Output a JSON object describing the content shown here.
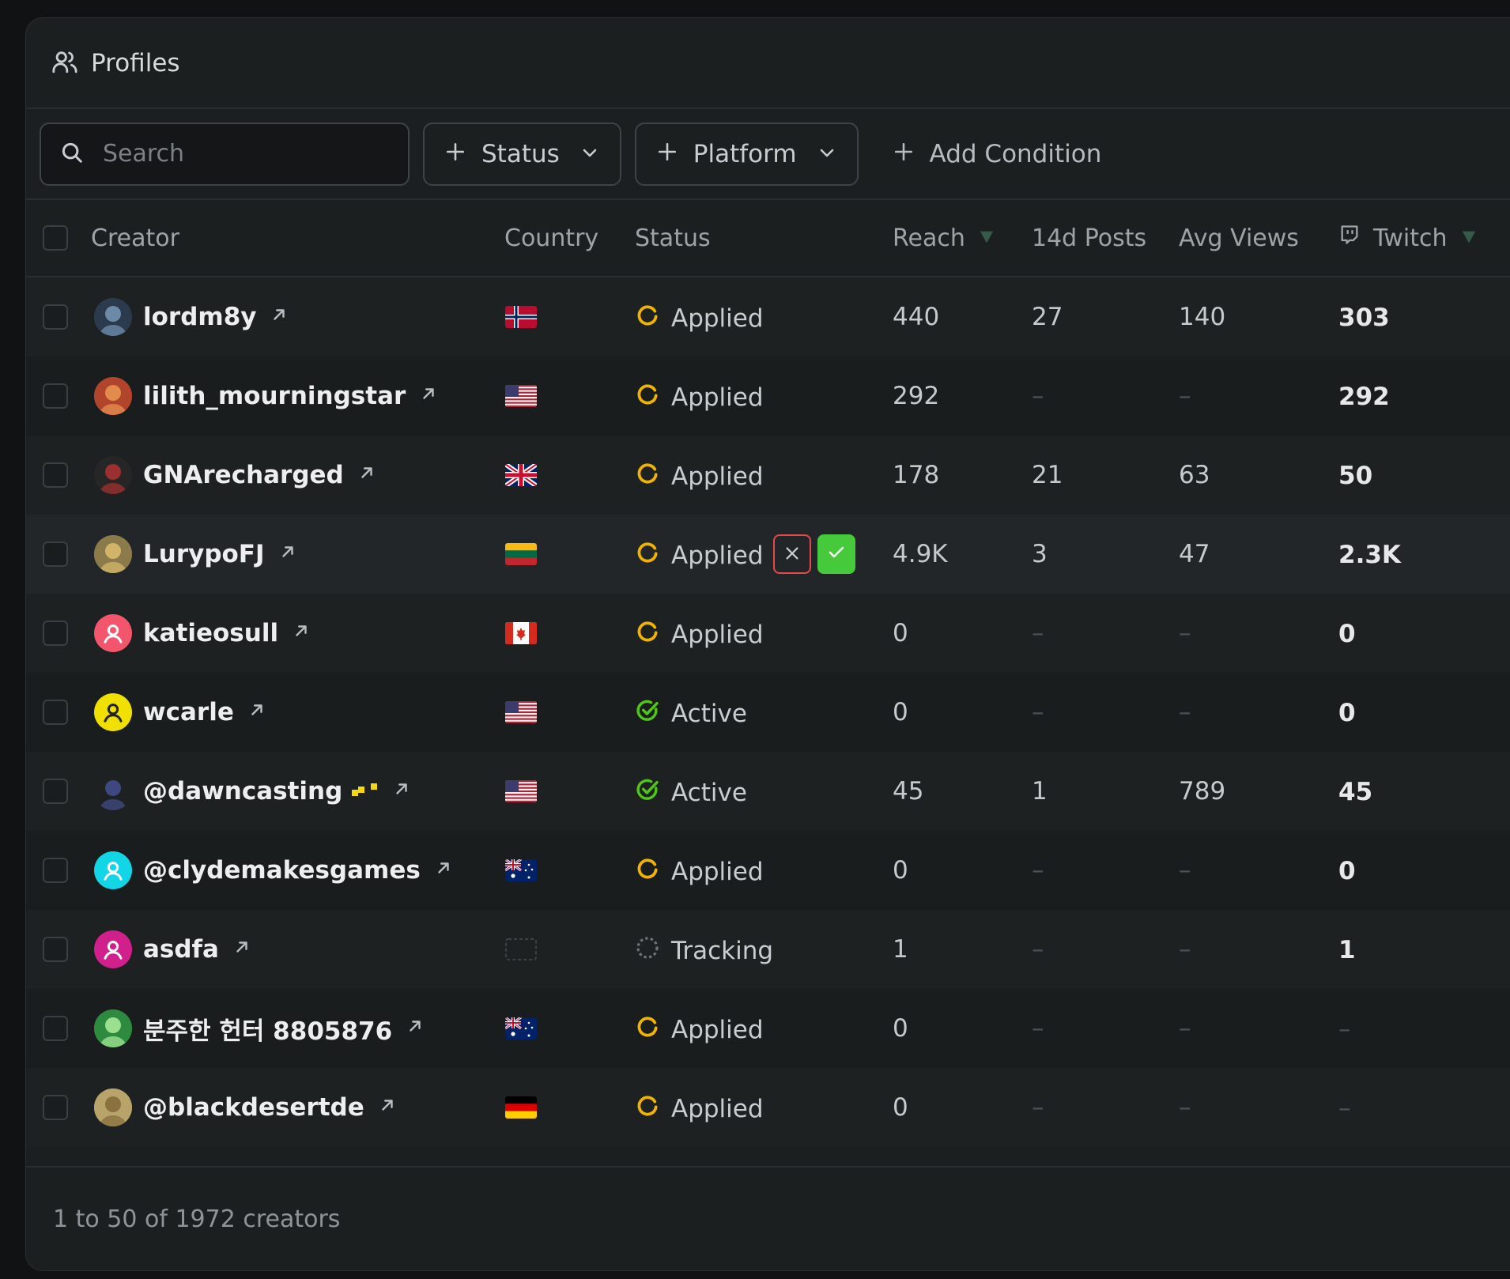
{
  "header": {
    "title": "Profiles",
    "icon": "users-icon"
  },
  "toolbar": {
    "search_placeholder": "Search",
    "status_filter": "Status",
    "platform_filter": "Platform",
    "add_condition": "Add Condition"
  },
  "columns": {
    "creator": "Creator",
    "country": "Country",
    "status": "Status",
    "reach": "Reach",
    "posts14d": "14d Posts",
    "avgviews": "Avg Views",
    "twitch": "Twitch"
  },
  "colors": {
    "applied": "#f0b400",
    "active": "#52c41a",
    "reject": "#e5484d",
    "approve": "#46c93a"
  },
  "rows": [
    {
      "name": "lordm8y",
      "flag": "NO",
      "status": "Applied",
      "reach": "440",
      "posts": "27",
      "views": "140",
      "twitch": "303"
    },
    {
      "name": "lilith_mourningstar",
      "flag": "US",
      "status": "Applied",
      "reach": "292",
      "posts": "–",
      "views": "–",
      "twitch": "292"
    },
    {
      "name": "GNArecharged",
      "flag": "GB",
      "status": "Applied",
      "reach": "178",
      "posts": "21",
      "views": "63",
      "twitch": "50"
    },
    {
      "name": "LurypoFJ",
      "flag": "LT",
      "status": "Applied",
      "reach": "4.9K",
      "posts": "3",
      "views": "47",
      "twitch": "2.3K"
    },
    {
      "name": "katieosull",
      "flag": "CA",
      "status": "Applied",
      "reach": "0",
      "posts": "–",
      "views": "–",
      "twitch": "0"
    },
    {
      "name": "wcarle",
      "flag": "US",
      "status": "Active",
      "reach": "0",
      "posts": "–",
      "views": "–",
      "twitch": "0"
    },
    {
      "name": "@dawncasting",
      "flag": "US",
      "status": "Active",
      "reach": "45",
      "posts": "1",
      "views": "789",
      "twitch": "45"
    },
    {
      "name": "@clydemakesgames",
      "flag": "AU",
      "status": "Applied",
      "reach": "0",
      "posts": "–",
      "views": "–",
      "twitch": "0"
    },
    {
      "name": "asdfa",
      "flag": "",
      "status": "Tracking",
      "reach": "1",
      "posts": "–",
      "views": "–",
      "twitch": "1"
    },
    {
      "name": "분주한 헌터 8805876",
      "flag": "AU",
      "status": "Applied",
      "reach": "0",
      "posts": "–",
      "views": "–",
      "twitch": "–"
    },
    {
      "name": "@blackdesertde",
      "flag": "DE",
      "status": "Applied",
      "reach": "0",
      "posts": "–",
      "views": "–",
      "twitch": "–"
    }
  ],
  "footer": {
    "pagination": "1 to 50 of 1972 creators"
  }
}
